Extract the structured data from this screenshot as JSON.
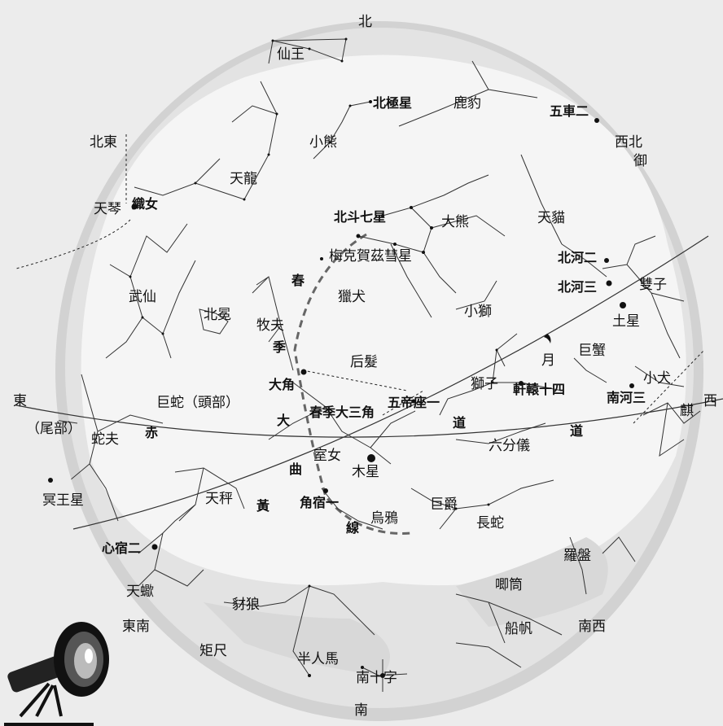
{
  "directions": {
    "north": "北",
    "south": "南",
    "east": "東",
    "west": "西",
    "northeast": "北東",
    "northwest": "西北",
    "southeast": "東南",
    "southwest": "南西"
  },
  "constellations": {
    "cepheus": "仙王",
    "ursa_minor": "小熊",
    "camelopardalis": "鹿豹",
    "draco": "天龍",
    "ursa_major": "大熊",
    "lynx": "天貓",
    "canes_venatici": "獵犬",
    "leo_minor": "小獅",
    "hercules": "武仙",
    "corona_borealis": "北冕",
    "bootes": "牧夫",
    "coma_berenices": "后髮",
    "gemini": "雙子",
    "cancer": "巨蟹",
    "canis_minor": "小犬",
    "monoceros": "麒",
    "leo": "獅子",
    "serpens_caput": "巨蛇（頭部）",
    "serpens_cauda": "（尾部）",
    "ophiuchus": "蛇夫",
    "virgo": "室女",
    "sextans": "六分儀",
    "libra": "天秤",
    "corvus": "烏鴉",
    "crater": "巨爵",
    "hydra": "長蛇",
    "pyxis": "羅盤",
    "antlia": "唧筒",
    "lupus": "豺狼",
    "centaurus": "半人馬",
    "vela": "船帆",
    "crux": "南十字",
    "scorpius": "天蠍",
    "norma": "矩尺",
    "lyra": "天琴",
    "auriga": "御"
  },
  "stars": {
    "polaris": "北極星",
    "capella": "五車二",
    "vega": "織女",
    "big_dipper": "北斗七星",
    "castor": "北河二",
    "pollux": "北河三",
    "procyon": "南河三",
    "regulus": "軒轅十四",
    "denebola": "五帝座一",
    "arcturus": "大角",
    "spica": "角宿一",
    "antares": "心宿二"
  },
  "asterism": "春季大三角",
  "spring_curve": {
    "chars": [
      "春",
      "季",
      "大",
      "曲",
      "線"
    ]
  },
  "comet": "梅克賀茲彗星",
  "planets": {
    "saturn": "土星",
    "jupiter": "木星",
    "pluto": "冥王星",
    "moon": "月"
  },
  "ecliptic": {
    "chars": [
      "黃",
      "赤",
      "道",
      "道"
    ]
  }
}
